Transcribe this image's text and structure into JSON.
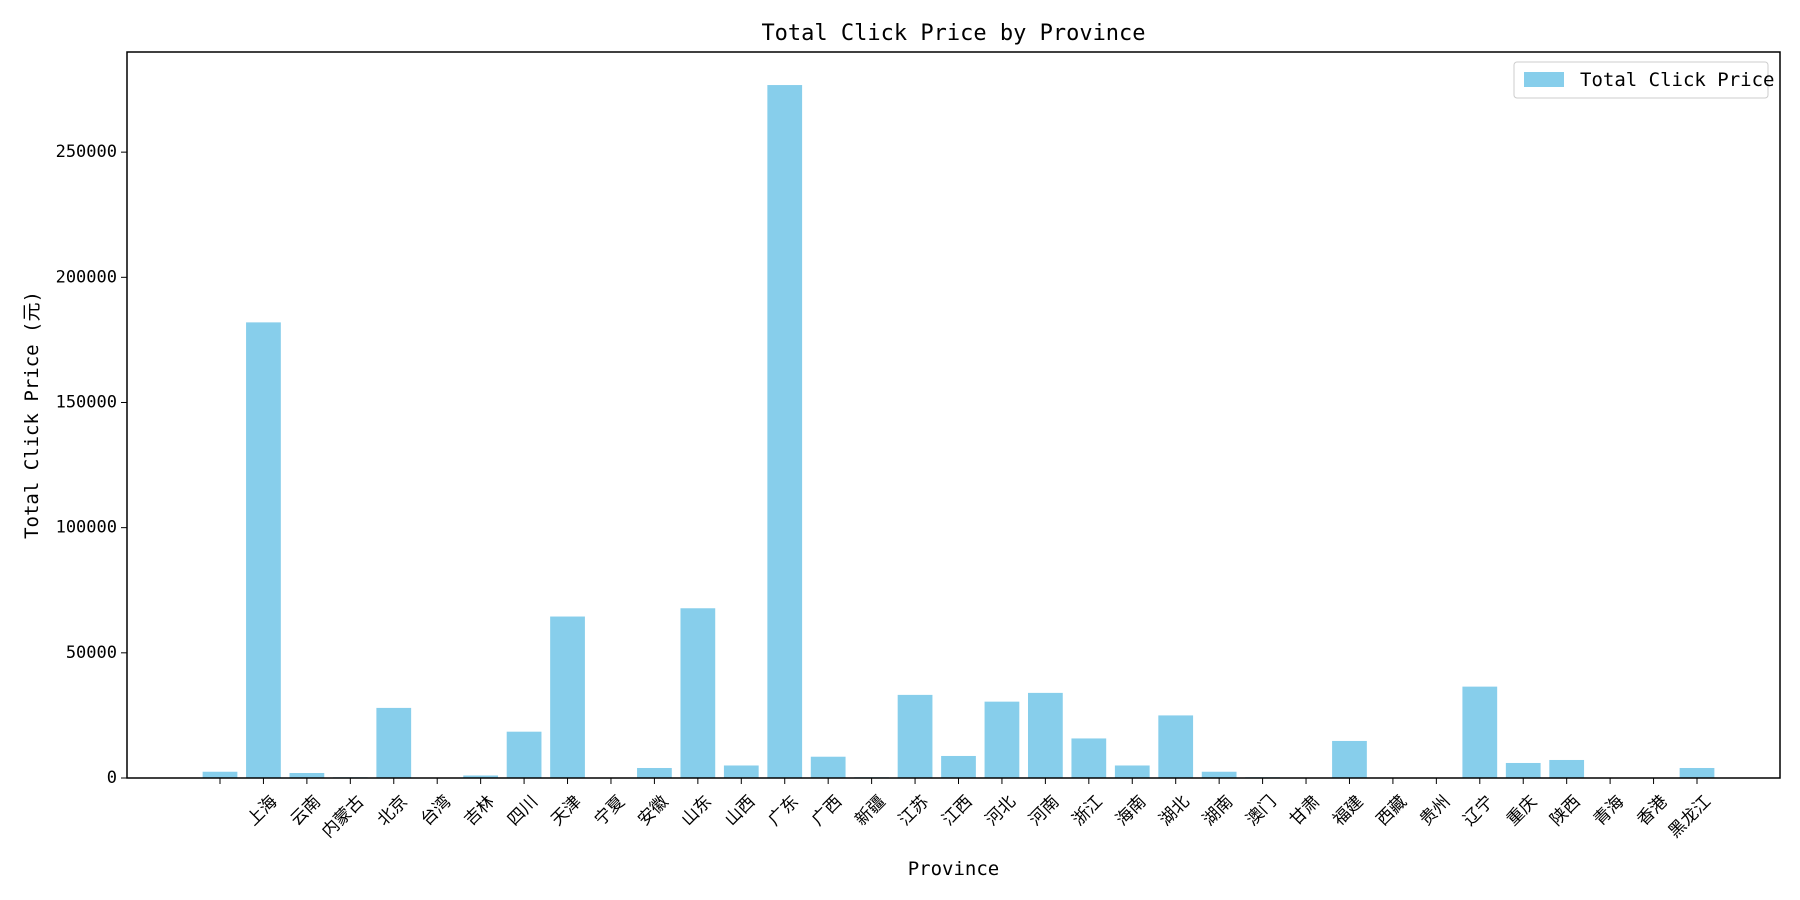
{
  "chart_data": {
    "type": "bar",
    "title": "Total Click Price by Province",
    "xlabel": "Province",
    "ylabel": "Total Click Price (元)",
    "legend": {
      "label": "Total Click Price",
      "placement": "top-right"
    },
    "bar_color": "#87CEEB",
    "ylim": [
      0,
      290000
    ],
    "yticks": [
      0,
      50000,
      100000,
      150000,
      200000,
      250000
    ],
    "grid": false,
    "categories": [
      "",
      "上海",
      "云南",
      "内蒙古",
      "北京",
      "台湾",
      "吉林",
      "四川",
      "天津",
      "宁夏",
      "安徽",
      "山东",
      "山西",
      "广东",
      "广西",
      "新疆",
      "江苏",
      "江西",
      "河北",
      "河南",
      "浙江",
      "海南",
      "湖北",
      "湖南",
      "澳门",
      "甘肃",
      "福建",
      "西藏",
      "贵州",
      "辽宁",
      "重庆",
      "陕西",
      "青海",
      "香港",
      "黑龙江"
    ],
    "values": [
      2500,
      182000,
      2000,
      300,
      28000,
      200,
      1000,
      18500,
      64500,
      200,
      4000,
      67800,
      5000,
      276800,
      8500,
      300,
      33200,
      8800,
      30500,
      34000,
      15800,
      5000,
      25000,
      2500,
      300,
      200,
      14800,
      200,
      200,
      36500,
      6000,
      7200,
      200,
      200,
      4000
    ]
  }
}
